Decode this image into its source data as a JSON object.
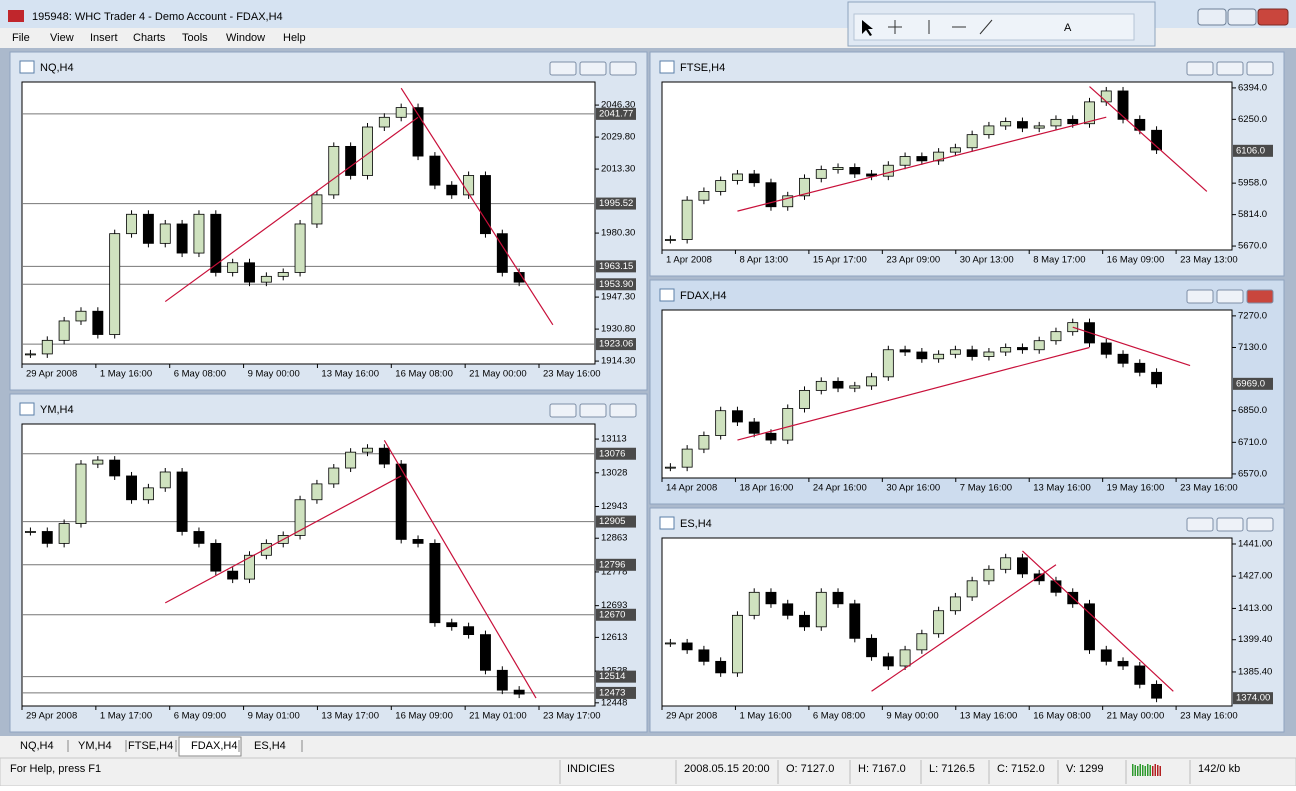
{
  "window_title": "195948: WHC Trader 4 - Demo Account - FDAX,H4",
  "menu": [
    "File",
    "View",
    "Insert",
    "Charts",
    "Tools",
    "Window",
    "Help"
  ],
  "charts": [
    {
      "title": "NQ,H4",
      "ylim": [
        1912.8,
        2058.2
      ],
      "yticks": [
        {
          "value": 2046.3,
          "label": "2046.30"
        },
        {
          "value": 2029.8,
          "label": "2029.80"
        },
        {
          "value": 2013.3,
          "label": "2013.30"
        },
        {
          "value": 1980.3,
          "label": "1980.30"
        },
        {
          "value": 1947.3,
          "label": "1947.30"
        },
        {
          "value": 1930.8,
          "label": "1930.80"
        },
        {
          "value": 1914.3,
          "label": "1914.30"
        }
      ],
      "xlabels": [
        "29 Apr 2008",
        "1 May 16:00",
        "6 May 08:00",
        "9 May 00:00",
        "13 May 16:00",
        "16 May 08:00",
        "21 May 00:00",
        "23 May 16:00"
      ],
      "closes": [
        1918,
        1925,
        1935,
        1940,
        1928,
        1980,
        1990,
        1975,
        1985,
        1970,
        1990,
        1960,
        1965,
        1955,
        1958,
        1960,
        1985,
        2000,
        2025,
        2010,
        2035,
        2040,
        2045,
        2020,
        2005,
        2000,
        2010,
        1980,
        1960,
        1955
      ],
      "hlines": [
        2041.77,
        1995.52,
        1963.15,
        {
          "value": 1953.9,
          "label": "1953.90"
        },
        1923.06
      ],
      "trendlines": [
        {
          "x": [
            8,
            23
          ],
          "y": [
            1945,
            2040
          ]
        },
        {
          "x": [
            22,
            31
          ],
          "y": [
            2055,
            1933
          ]
        }
      ]
    },
    {
      "title": "YM,H4",
      "ylim": [
        12440,
        13151
      ],
      "yticks": [
        13113,
        13028,
        12943,
        12863,
        12778,
        12693,
        12613,
        12528,
        12448
      ],
      "xlabels": [
        "29 Apr 2008",
        "1 May 17:00",
        "6 May 09:00",
        "9 May 01:00",
        "13 May 17:00",
        "16 May 09:00",
        "21 May 01:00",
        "23 May 17:00"
      ],
      "closes": [
        12880,
        12850,
        12900,
        13050,
        13060,
        13020,
        12960,
        12990,
        13030,
        12880,
        12850,
        12780,
        12760,
        12820,
        12850,
        12870,
        12960,
        13000,
        13040,
        13080,
        13090,
        13050,
        12860,
        12850,
        12650,
        12640,
        12620,
        12530,
        12480,
        12470
      ],
      "hlines": [
        13076,
        12905,
        12796,
        12670,
        12514,
        12473
      ],
      "trendlines": [
        {
          "x": [
            8,
            22
          ],
          "y": [
            12700,
            13020
          ]
        },
        {
          "x": [
            21,
            30
          ],
          "y": [
            13110,
            12460
          ]
        }
      ]
    },
    {
      "title": "FTSE,H4",
      "ylim": [
        5652,
        6421
      ],
      "yticks": [
        {
          "value": 6394,
          "label": "6394.0"
        },
        {
          "value": 6250,
          "label": "6250.0"
        },
        {
          "value": 5958,
          "label": "5958.0"
        },
        {
          "value": 5814,
          "label": "5814.0"
        },
        {
          "value": 5670,
          "label": "5670.0"
        }
      ],
      "xlabels": [
        "1 Apr 2008",
        "8 Apr 13:00",
        "15 Apr 17:00",
        "23 Apr 09:00",
        "30 Apr 13:00",
        "8 May 17:00",
        "16 May 09:00",
        "23 May 13:00"
      ],
      "closes": [
        5700,
        5880,
        5920,
        5970,
        6000,
        5960,
        5850,
        5900,
        5980,
        6020,
        6030,
        6000,
        5990,
        6040,
        6080,
        6060,
        6100,
        6120,
        6180,
        6220,
        6240,
        6210,
        6220,
        6250,
        6230,
        6330,
        6380,
        6250,
        6200,
        6110
      ],
      "price_tags": [
        {
          "value": 6106,
          "label": "6106.0"
        }
      ],
      "trendlines": [
        {
          "x": [
            4,
            26
          ],
          "y": [
            5830,
            6260
          ]
        },
        {
          "x": [
            25,
            32
          ],
          "y": [
            6400,
            5920
          ]
        }
      ]
    },
    {
      "title": "FDAX,H4",
      "ylim": [
        6552,
        7296
      ],
      "yticks": [
        {
          "value": 7270,
          "label": "7270.0"
        },
        {
          "value": 7130,
          "label": "7130.0"
        },
        {
          "value": 6850,
          "label": "6850.0"
        },
        {
          "value": 6710,
          "label": "6710.0"
        },
        {
          "value": 6570,
          "label": "6570.0"
        }
      ],
      "xlabels": [
        "14 Apr 2008",
        "18 Apr 16:00",
        "24 Apr 16:00",
        "30 Apr 16:00",
        "7 May 16:00",
        "13 May 16:00",
        "19 May 16:00",
        "23 May 16:00"
      ],
      "closes": [
        6600,
        6680,
        6740,
        6850,
        6800,
        6750,
        6720,
        6860,
        6940,
        6980,
        6950,
        6960,
        7000,
        7120,
        7110,
        7080,
        7100,
        7120,
        7090,
        7110,
        7130,
        7120,
        7160,
        7200,
        7240,
        7150,
        7100,
        7060,
        7020,
        6969
      ],
      "price_tags": [
        {
          "value": 6969,
          "label": "6969.0"
        }
      ],
      "trendlines": [
        {
          "x": [
            4,
            25
          ],
          "y": [
            6720,
            7130
          ]
        },
        {
          "x": [
            24,
            31
          ],
          "y": [
            7220,
            7050
          ]
        }
      ]
    },
    {
      "title": "ES,H4",
      "ylim": [
        1370.6,
        1443.6
      ],
      "yticks": [
        {
          "value": 1441,
          "label": "1441.00"
        },
        {
          "value": 1427,
          "label": "1427.00"
        },
        {
          "value": 1413,
          "label": "1413.00"
        },
        {
          "value": 1399.4,
          "label": "1399.40"
        },
        {
          "value": 1385.4,
          "label": "1385.40"
        }
      ],
      "xlabels": [
        "29 Apr 2008",
        "1 May 16:00",
        "6 May 08:00",
        "9 May 00:00",
        "13 May 16:00",
        "16 May 08:00",
        "21 May 00:00",
        "23 May 16:00"
      ],
      "closes": [
        1398,
        1395,
        1390,
        1385,
        1410,
        1420,
        1415,
        1410,
        1405,
        1420,
        1415,
        1400,
        1392,
        1388,
        1395,
        1402,
        1412,
        1418,
        1425,
        1430,
        1435,
        1428,
        1425,
        1420,
        1415,
        1395,
        1390,
        1388,
        1380,
        1374
      ],
      "price_tags": [
        {
          "value": 1374,
          "label": "1374.00"
        }
      ],
      "trendlines": [
        {
          "x": [
            12,
            23
          ],
          "y": [
            1377,
            1432
          ]
        },
        {
          "x": [
            21,
            30
          ],
          "y": [
            1438,
            1377
          ]
        }
      ]
    }
  ],
  "tabs": [
    "NQ,H4",
    "YM,H4",
    "FTSE,H4",
    "FDAX,H4",
    "ES,H4"
  ],
  "active_tab": 3,
  "status": {
    "help": "For Help, press F1",
    "profile": "INDICIES",
    "time": "2008.05.15 20:00",
    "open": "O: 7127.0",
    "high": "H: 7167.0",
    "low": "L: 7126.5",
    "close": "C: 7152.0",
    "volume": "V: 1299",
    "traffic": "142/0 kb"
  }
}
